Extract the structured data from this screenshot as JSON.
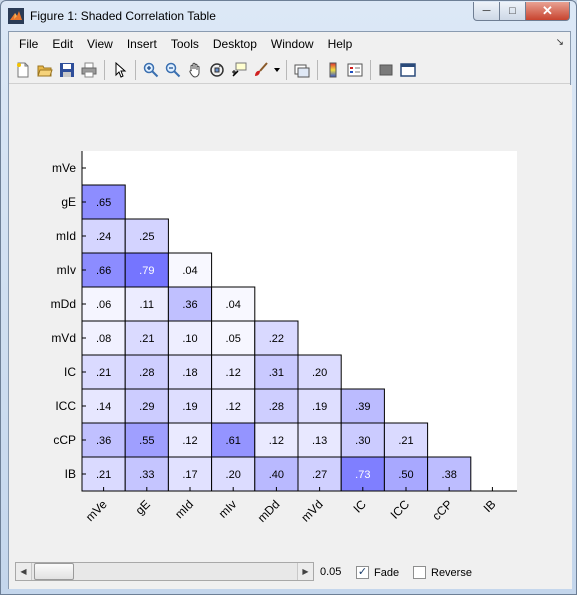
{
  "window": {
    "title": "Figure 1: Shaded Correlation Table",
    "min_symbol": "─",
    "max_symbol": "□",
    "close_symbol": "✕"
  },
  "menubar": {
    "items": [
      "File",
      "Edit",
      "View",
      "Insert",
      "Tools",
      "Desktop",
      "Window",
      "Help"
    ],
    "dock_arrow": "↘"
  },
  "toolbar": {
    "icons": [
      "new-figure-icon",
      "open-file-icon",
      "save-icon",
      "print-icon",
      "pointer-icon",
      "zoom-in-icon",
      "zoom-out-icon",
      "pan-icon",
      "rotate-3d-icon",
      "data-cursor-icon",
      "brush-icon",
      "brush-dropdown-icon",
      "link-plot-icon",
      "colorbar-icon",
      "legend-icon",
      "hide-tools-icon",
      "show-tools-icon"
    ]
  },
  "chart_data": {
    "type": "table",
    "variables": [
      "mVe",
      "gE",
      "mId",
      "mIv",
      "mDd",
      "mVd",
      "IC",
      "ICC",
      "cCP",
      "IB"
    ],
    "row_labels": [
      "mVe",
      "gE",
      "mId",
      "mIv",
      "mDd",
      "mVd",
      "IC",
      "ICC",
      "cCP",
      "IB"
    ],
    "column_labels": [
      "mVe",
      "gE",
      "mId",
      "mIv",
      "mDd",
      "mVd",
      "IC",
      "ICC",
      "cCP",
      "IB"
    ],
    "values": [
      [],
      [
        0.65
      ],
      [
        0.24,
        0.25
      ],
      [
        0.66,
        0.79,
        0.04
      ],
      [
        0.06,
        0.11,
        0.36,
        0.04
      ],
      [
        0.08,
        0.21,
        0.1,
        0.05,
        0.22
      ],
      [
        0.21,
        0.28,
        0.18,
        0.12,
        0.31,
        0.2
      ],
      [
        0.14,
        0.29,
        0.19,
        0.12,
        0.28,
        0.19,
        0.39
      ],
      [
        0.36,
        0.55,
        0.12,
        0.61,
        0.12,
        0.13,
        0.3,
        0.21
      ],
      [
        0.21,
        0.33,
        0.17,
        0.2,
        0.4,
        0.27,
        0.73,
        0.5,
        0.38
      ]
    ],
    "cell_labels": [
      [],
      [
        ".65"
      ],
      [
        ".24",
        ".25"
      ],
      [
        ".66",
        ".79",
        ".04"
      ],
      [
        ".06",
        ".11",
        ".36",
        ".04"
      ],
      [
        ".08",
        ".21",
        ".10",
        ".05",
        ".22"
      ],
      [
        ".21",
        ".28",
        ".18",
        ".12",
        ".31",
        ".20"
      ],
      [
        ".14",
        ".29",
        ".19",
        ".12",
        ".28",
        ".19",
        ".39"
      ],
      [
        ".36",
        ".55",
        ".12",
        ".61",
        ".12",
        ".13",
        ".30",
        ".21"
      ],
      [
        ".21",
        ".33",
        ".17",
        ".20",
        ".40",
        ".27",
        ".73",
        ".50",
        ".38"
      ]
    ],
    "shade_color_max": "#5050ff",
    "shade_color_min": "#ffffff",
    "text_color_dark": "#000000",
    "text_color_light": "#ffffff"
  },
  "controls": {
    "slider_value": 0.05,
    "slider_value_label": "0.05",
    "slider_left_arrow": "◀",
    "slider_right_arrow": "▶",
    "fade": {
      "label": "Fade",
      "checked": true,
      "mark": "✓"
    },
    "reverse": {
      "label": "Reverse",
      "checked": false
    }
  }
}
